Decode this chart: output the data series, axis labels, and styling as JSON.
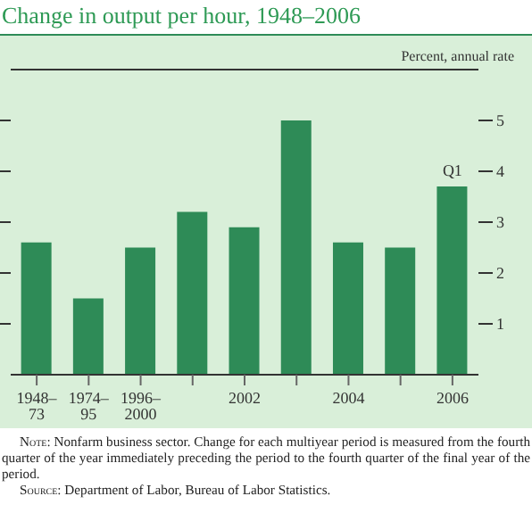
{
  "chart_data": {
    "type": "bar",
    "title": "Change in output per hour, 1948–2006",
    "ylabel": "Percent, annual rate",
    "categories": [
      "1948–73",
      "1974–95",
      "1996–2000",
      null,
      "2002",
      null,
      "2004",
      null,
      "2006"
    ],
    "values": [
      2.6,
      1.5,
      2.5,
      3.2,
      2.9,
      5.0,
      2.6,
      2.5,
      3.7
    ],
    "color": "#2e8b57",
    "ylim": [
      0,
      6
    ],
    "yticks": [
      1,
      2,
      3,
      4,
      5
    ],
    "grid": false,
    "legend": false,
    "annotations": [
      {
        "text": "Q1",
        "x": "2006",
        "y": 3.7
      },
      "Note: Nonfarm business sector. Change for each multiyear period is measured from the fourth quarter of the year immediately preceding the period to the fourth quarter of the final year of the period.",
      "Source: Department of Labor, Bureau of Labor Statistics."
    ]
  }
}
